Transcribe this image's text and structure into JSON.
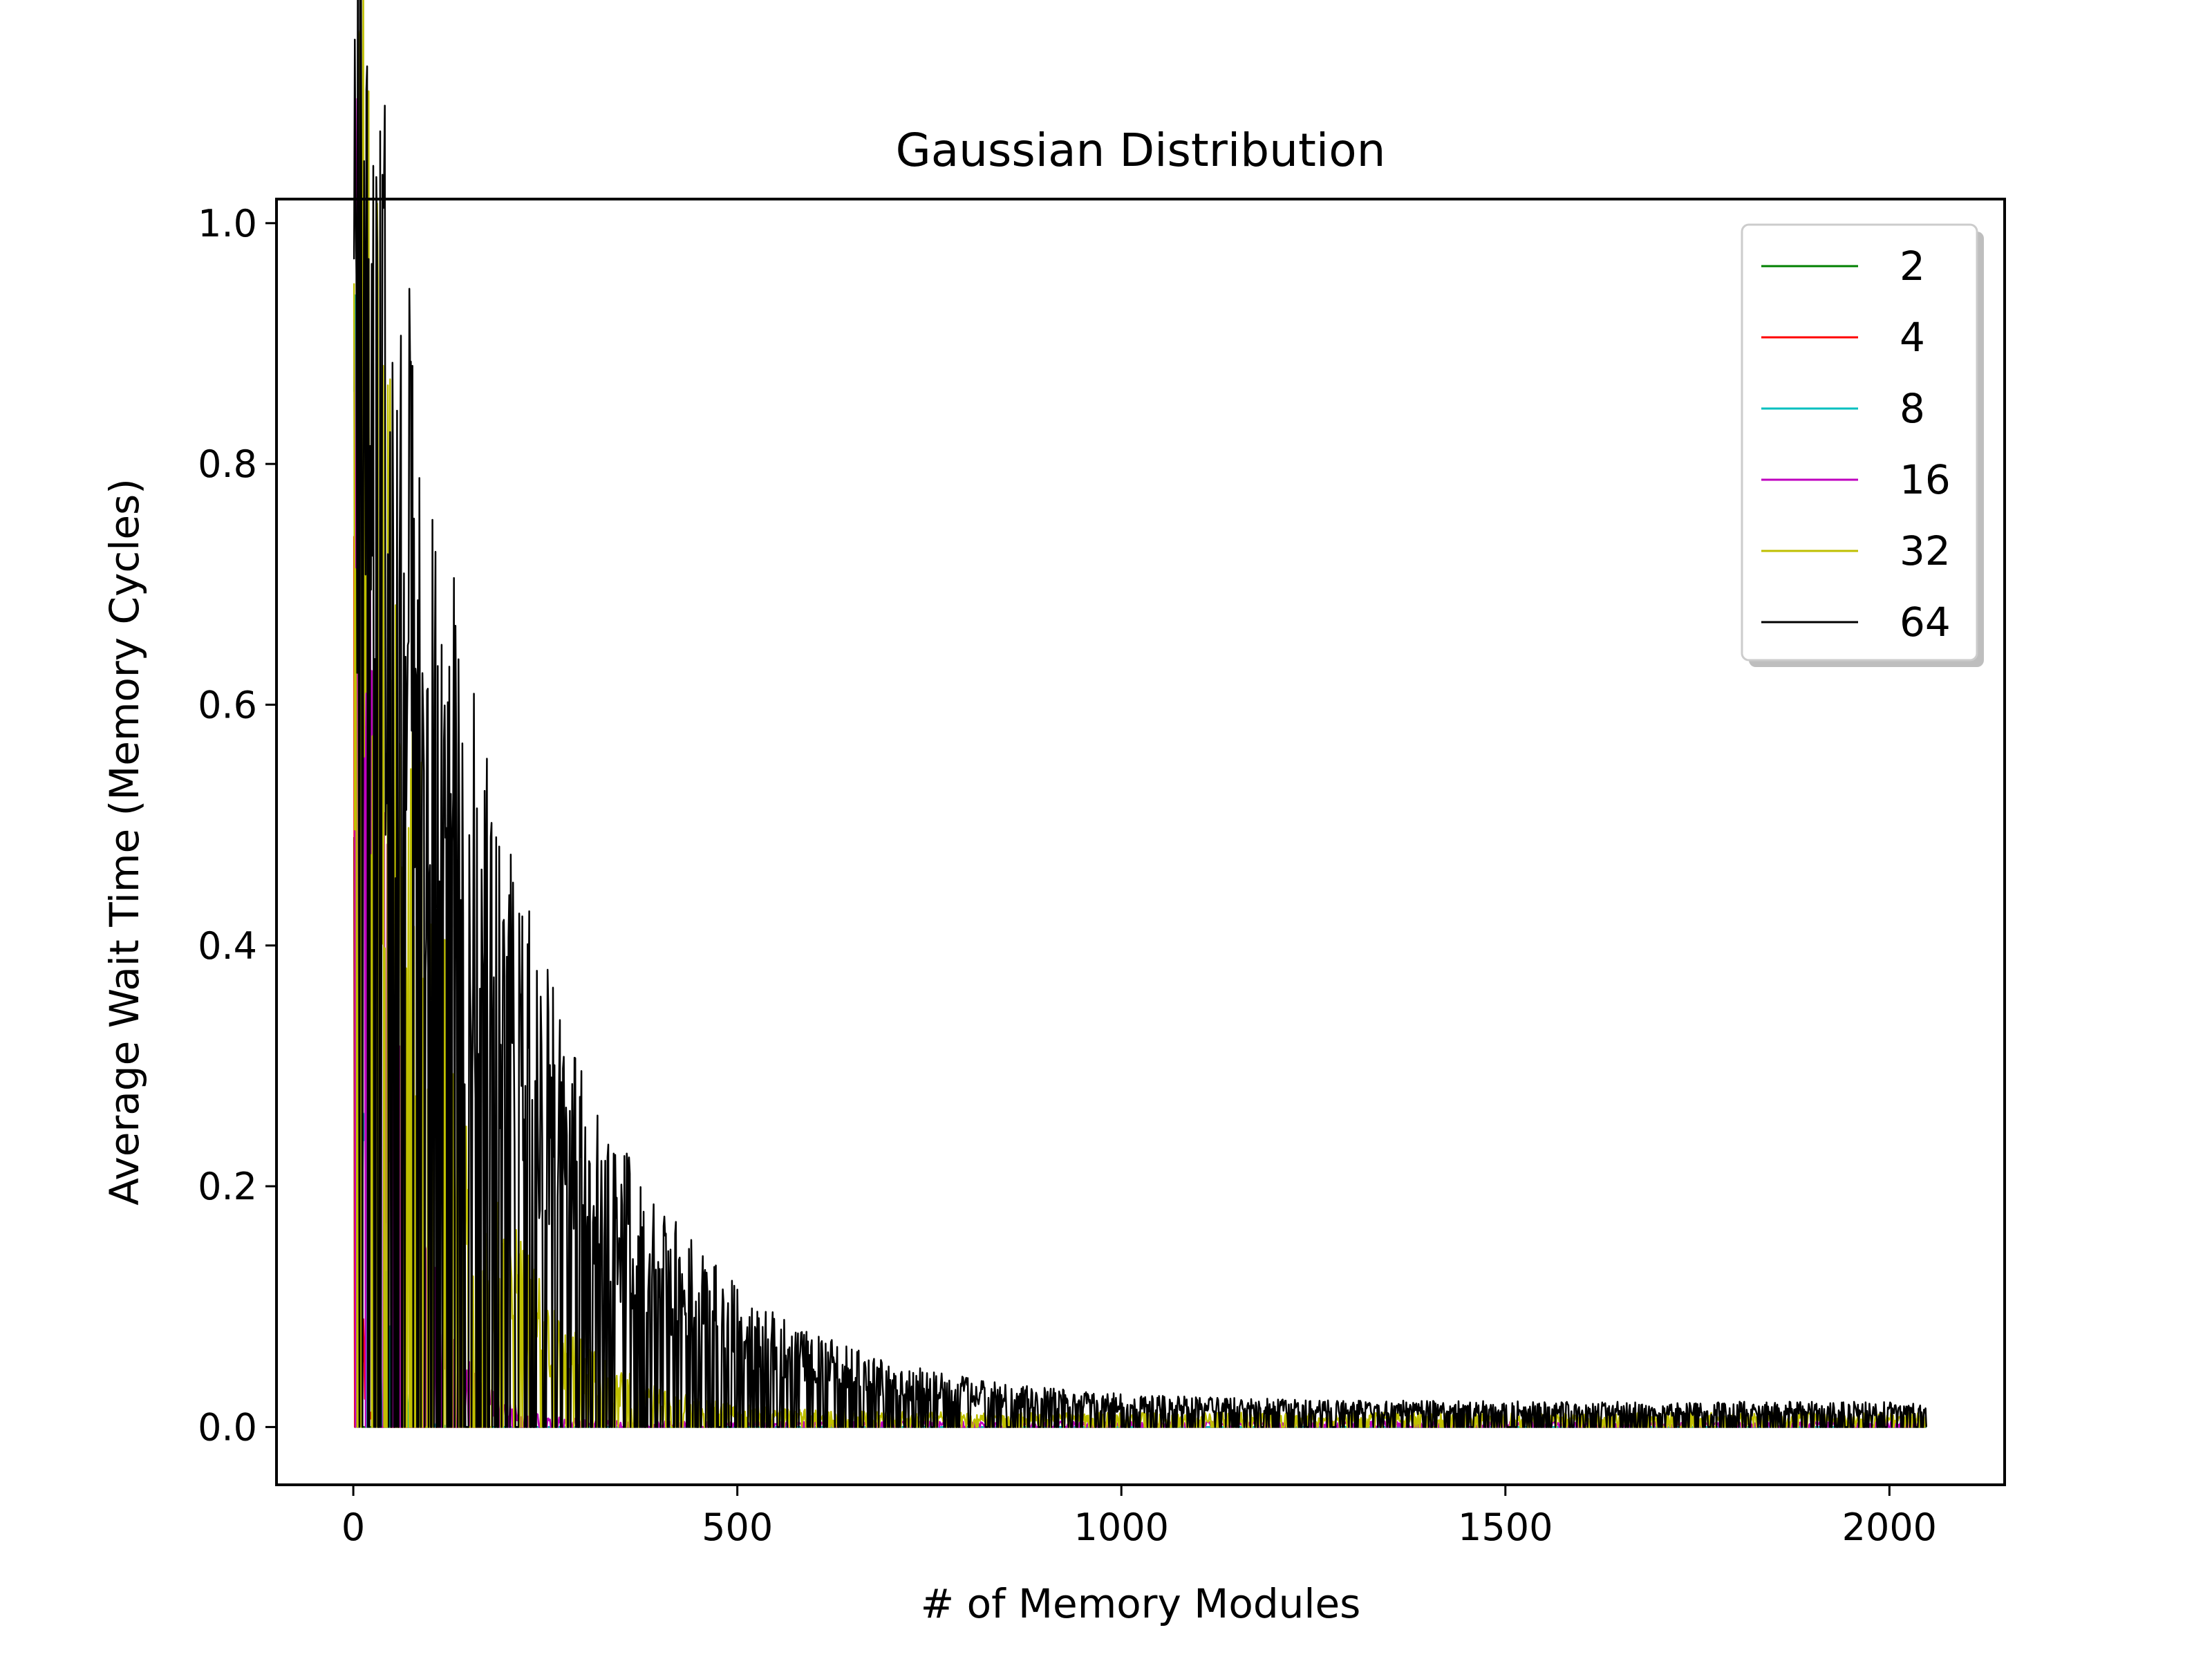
{
  "chart_data": {
    "type": "line",
    "title": "Gaussian Distribution",
    "xlabel": "# of Memory Modules",
    "ylabel": "Average Wait Time (Memory Cycles)",
    "xlim": [
      -100,
      2150
    ],
    "ylim": [
      -0.048,
      1.02
    ],
    "xticks": [
      0,
      500,
      1000,
      1500,
      2000
    ],
    "xtick_labels": [
      "0",
      "500",
      "1000",
      "1500",
      "2000"
    ],
    "yticks": [
      0.0,
      0.2,
      0.4,
      0.6,
      0.8,
      1.0
    ],
    "ytick_labels": [
      "0.0",
      "0.2",
      "0.4",
      "0.6",
      "0.8",
      "1.0"
    ],
    "x_range": [
      1,
      2048
    ],
    "legend_position": "upper right",
    "grid": false,
    "series": [
      {
        "name": "2",
        "color": "#008000",
        "peak": 0.49,
        "decay_scale": 1.5,
        "floor": 0.0,
        "noise": 0.6
      },
      {
        "name": "4",
        "color": "#ff0000",
        "peak": 0.74,
        "decay_scale": 5,
        "floor": 0.0,
        "noise": 0.6
      },
      {
        "name": "8",
        "color": "#00bfbf",
        "peak": 0.86,
        "decay_scale": 18,
        "floor": 0.0,
        "noise": 0.6
      },
      {
        "name": "16",
        "color": "#bf00bf",
        "peak": 0.92,
        "decay_scale": 45,
        "floor": 0.003,
        "noise": 0.55
      },
      {
        "name": "32",
        "color": "#bfbf00",
        "peak": 0.95,
        "decay_scale": 95,
        "floor": 0.008,
        "noise": 0.5
      },
      {
        "name": "64",
        "color": "#000000",
        "peak": 0.97,
        "decay_scale": 190,
        "floor": 0.015,
        "noise": 0.4
      }
    ]
  }
}
